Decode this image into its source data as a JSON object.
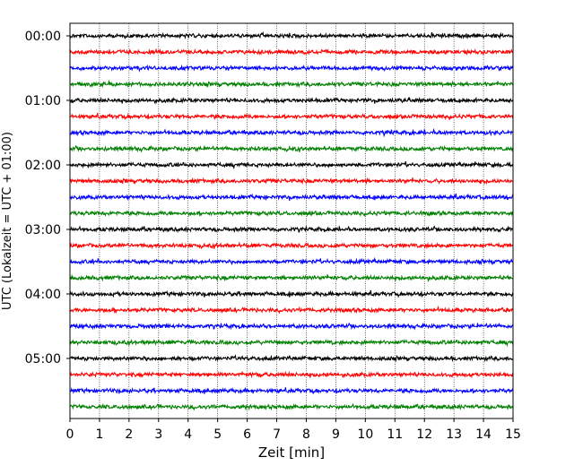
{
  "chart_data": {
    "type": "line",
    "title": "",
    "xlabel": "Zeit  [min]",
    "ylabel": "UTC (Lokalzeit = UTC + 01:00)",
    "xlim": [
      0,
      15
    ],
    "x_ticks": [
      "0",
      "1",
      "2",
      "3",
      "4",
      "5",
      "6",
      "7",
      "8",
      "9",
      "10",
      "11",
      "12",
      "13",
      "14",
      "15"
    ],
    "y_ticks": [
      "00:00",
      "01:00",
      "02:00",
      "03:00",
      "04:00",
      "05:00"
    ],
    "grid": "vertical dotted at each minute",
    "trace_interval_min": 15,
    "trace_count": 24,
    "trace_colors": [
      "#000000",
      "#ff0000",
      "#0000ff",
      "#008000"
    ],
    "traces_per_hour": 4
  }
}
